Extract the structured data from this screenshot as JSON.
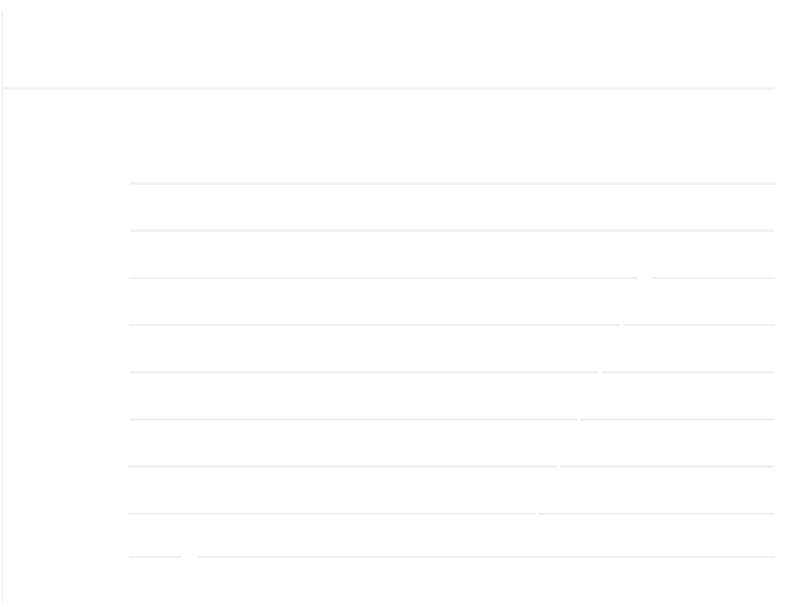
{
  "window": {
    "title": ""
  },
  "header": {
    "title": ""
  },
  "list": {
    "rows": [
      {
        "label": ""
      },
      {
        "label": ""
      },
      {
        "label": ""
      },
      {
        "label": ""
      },
      {
        "label": ""
      },
      {
        "label": ""
      },
      {
        "label": ""
      },
      {
        "label": ""
      },
      {
        "label": ""
      }
    ]
  },
  "colors": {
    "background": "#ffffff",
    "divider": "#f0f0f0"
  }
}
